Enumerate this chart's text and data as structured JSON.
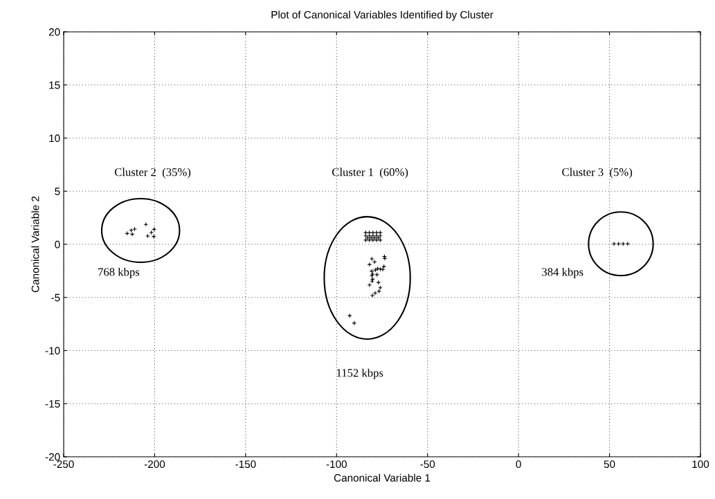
{
  "chart_data": {
    "type": "scatter",
    "title": "Plot of Canonical Variables Identified by Cluster",
    "xlabel": "Canonical Variable 1",
    "ylabel": "Canonical Variable 2",
    "xlim": [
      -250,
      100
    ],
    "ylim": [
      -20,
      20
    ],
    "xticks": [
      -250,
      -200,
      -150,
      -100,
      -50,
      0,
      50,
      100
    ],
    "yticks": [
      -20,
      -15,
      -10,
      -5,
      0,
      5,
      10,
      15,
      20
    ],
    "grid": true,
    "marker": "cross",
    "series": [
      {
        "color": "#000000",
        "x": [
          -215.1,
          -212.9,
          -211.0,
          -212.3,
          -204.8,
          -201.8,
          -200.3,
          -203.8,
          -200.5
        ],
        "values": [
          1.02,
          1.32,
          1.43,
          0.95,
          1.87,
          1.11,
          1.41,
          0.78,
          0.74
        ]
      },
      {
        "color": "#000000",
        "x": [
          -84,
          -82,
          -80,
          -78,
          -76,
          -84,
          -82,
          -80,
          -78,
          -76,
          -84,
          -82,
          -80,
          -78,
          -76,
          -83,
          -81,
          -79,
          -77,
          -80.6,
          -79.1,
          -81.9,
          -73.7,
          -73.5,
          -74.0,
          -75.9,
          -74.6,
          -77.4,
          -78.7,
          -80.7,
          -80.2,
          -77.8,
          -80.6,
          -80.2,
          -80.5,
          -77.0,
          -81.9,
          -76.0,
          -76.7,
          -78.8,
          -80.3,
          -92.8,
          -90.3
        ],
        "values": [
          0.4,
          0.4,
          0.4,
          0.4,
          0.4,
          0.8,
          0.8,
          0.8,
          0.8,
          0.8,
          1.1,
          1.1,
          1.1,
          1.1,
          1.1,
          0.6,
          0.6,
          0.6,
          0.6,
          -1.37,
          -1.66,
          -1.9,
          -1.15,
          -1.33,
          -2.09,
          -2.34,
          -2.36,
          -2.29,
          -2.42,
          -2.53,
          -2.8,
          -2.86,
          -2.95,
          -3.28,
          -3.47,
          -3.59,
          -3.83,
          -4.09,
          -4.42,
          -4.59,
          -4.82,
          -6.72,
          -7.42
        ]
      },
      {
        "color": "#000000",
        "x": [
          52.5,
          55,
          57.5,
          60
        ],
        "values": [
          0.05,
          0.05,
          0.05,
          0.05
        ]
      }
    ],
    "annotations": [
      "Cluster 2  (35%)",
      "768 kbps",
      "Cluster 1  (60%)",
      "1152 kbps",
      "Cluster 3  (5%)",
      "384 kbps"
    ]
  }
}
